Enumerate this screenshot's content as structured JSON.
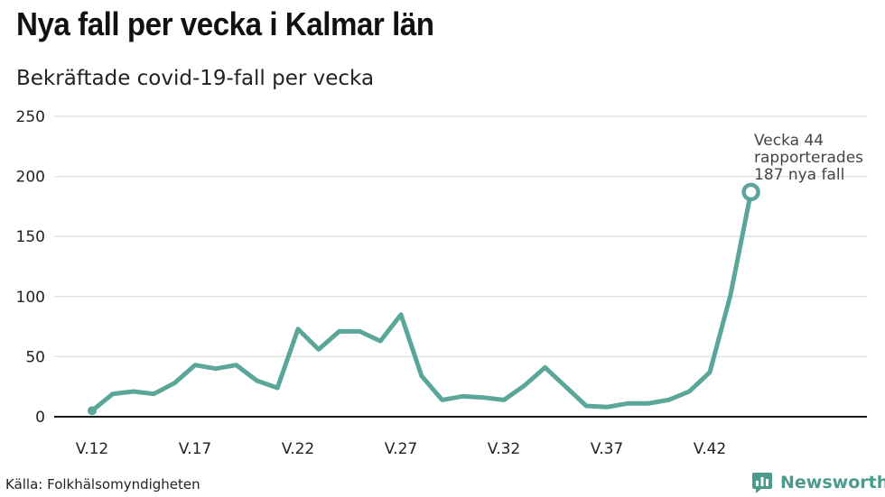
{
  "header": {
    "title": "Nya fall per vecka i Kalmar län",
    "subtitle": "Bekräftade covid-19-fall per vecka"
  },
  "footer": {
    "source": "Källa: Folkhälsomyndigheten",
    "brand": "Newsworthy"
  },
  "colors": {
    "line": "#5aa698",
    "grid": "#e3e3e3",
    "baseline": "#1a1a1a",
    "brand": "#4a9b8c"
  },
  "chart_data": {
    "type": "line",
    "x": [
      "V.12",
      "V.13",
      "V.14",
      "V.15",
      "V.16",
      "V.17",
      "V.18",
      "V.19",
      "V.20",
      "V.21",
      "V.22",
      "V.23",
      "V.24",
      "V.25",
      "V.26",
      "V.27",
      "V.28",
      "V.29",
      "V.30",
      "V.31",
      "V.32",
      "V.33",
      "V.34",
      "V.35",
      "V.36",
      "V.37",
      "V.38",
      "V.39",
      "V.40",
      "V.41",
      "V.42",
      "V.43",
      "V.44"
    ],
    "series": [
      {
        "values": [
          5,
          19,
          21,
          19,
          28,
          43,
          40,
          43,
          30,
          24,
          73,
          56,
          71,
          71,
          63,
          85,
          34,
          14,
          17,
          16,
          14,
          26,
          41,
          25,
          9,
          8,
          11,
          11,
          14,
          21,
          37,
          101,
          187
        ]
      }
    ],
    "xticks": [
      "V.12",
      "V.17",
      "V.22",
      "V.27",
      "V.32",
      "V.37",
      "V.42"
    ],
    "yticks": [
      0,
      50,
      100,
      150,
      200,
      250
    ],
    "ylim": [
      0,
      250
    ],
    "grid": true,
    "annotation": {
      "lines": [
        "Vecka 44",
        "rapporterades",
        "187 nya fall"
      ]
    },
    "title": "Nya fall per vecka i Kalmar län",
    "subtitle": "Bekräftade covid-19-fall per vecka",
    "xlabel": "",
    "ylabel": ""
  }
}
